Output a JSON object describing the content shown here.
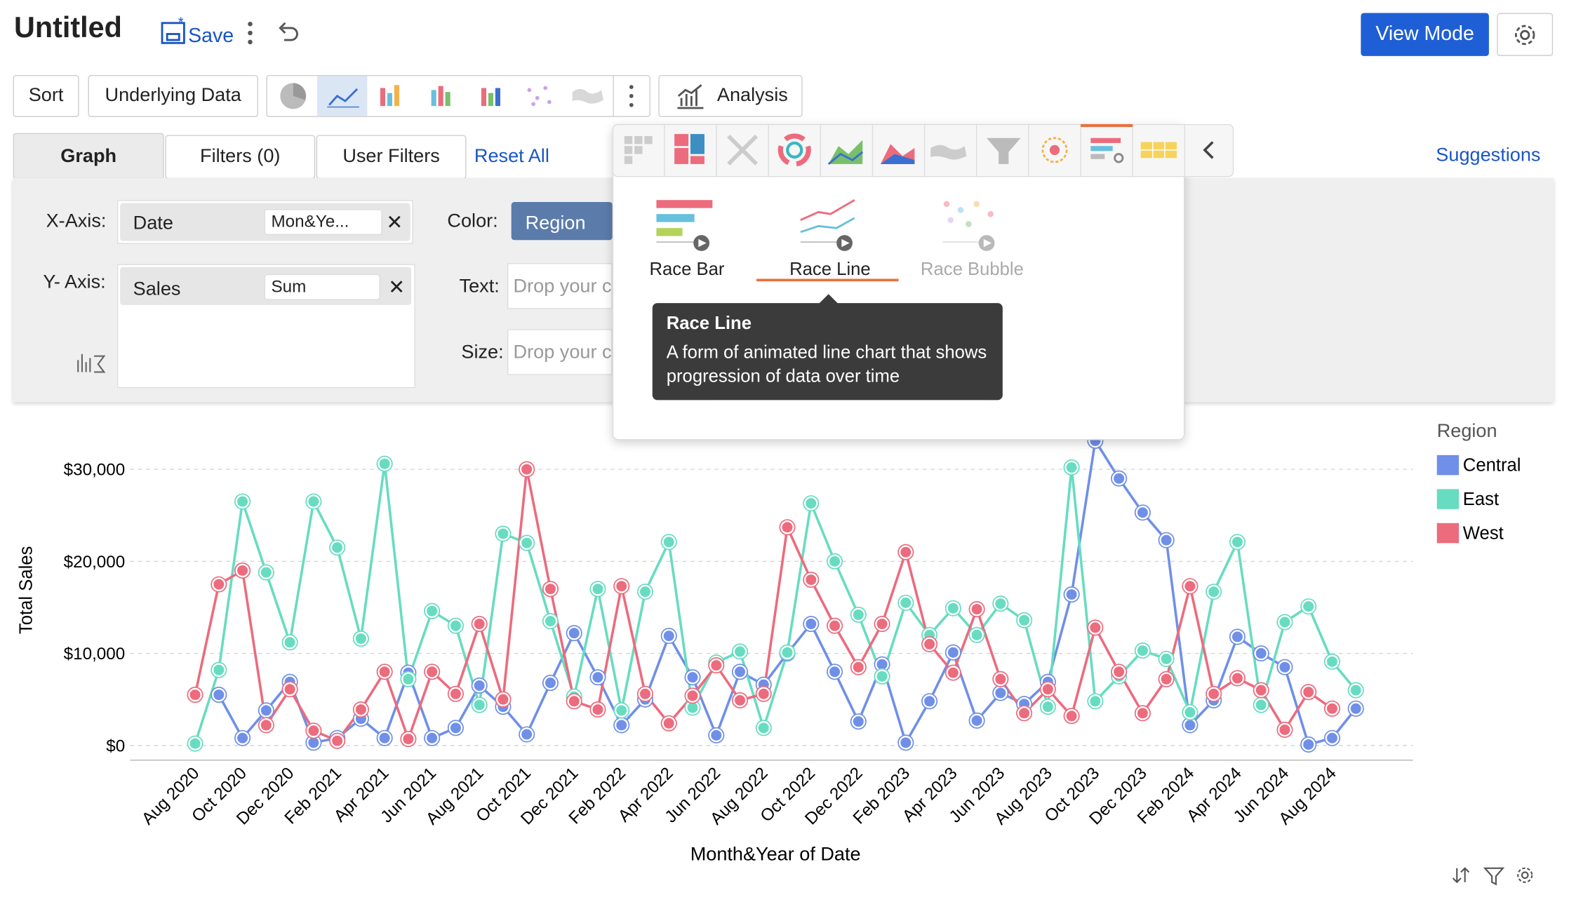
{
  "header": {
    "title": "Untitled",
    "save": "Save",
    "view_mode": "View Mode"
  },
  "toolbar": {
    "sort": "Sort",
    "underlying_data": "Underlying Data",
    "analysis": "Analysis"
  },
  "tabs": {
    "graph": "Graph",
    "filters": "Filters (0)",
    "user_filters": "User Filters",
    "reset_all": "Reset All",
    "suggestions": "Suggestions"
  },
  "shelf": {
    "x_axis_label": "X-Axis:",
    "x_field": "Date",
    "x_func": "Mon&Ye...",
    "y_axis_label": "Y- Axis:",
    "y_field": "Sales",
    "y_func": "Sum",
    "color_label": "Color:",
    "color_field": "Region",
    "text_label": "Text:",
    "text_placeholder": "Drop your c",
    "size_label": "Size:",
    "size_placeholder": "Drop your c"
  },
  "popup": {
    "items": [
      "Race Bar",
      "Race Line",
      "Race Bubble"
    ],
    "tooltip_title": "Race Line",
    "tooltip_body": "A form of animated line chart that shows progression of data over time"
  },
  "chart_data": {
    "type": "line",
    "xlabel": "Month&Year of Date",
    "ylabel": "Total Sales",
    "legend_title": "Region",
    "legend": "right",
    "grid": true,
    "categories": [
      "Aug 2020",
      null,
      "Oct 2020",
      null,
      "Dec 2020",
      null,
      "Feb 2021",
      null,
      "Apr 2021",
      null,
      "Jun 2021",
      null,
      "Aug 2021",
      null,
      "Oct 2021",
      null,
      "Dec 2021",
      null,
      "Feb 2022",
      null,
      "Apr 2022",
      null,
      "Jun 2022",
      null,
      "Aug 2022",
      null,
      "Oct 2022",
      null,
      "Dec 2022",
      null,
      "Feb 2023",
      null,
      "Apr 2023",
      null,
      "Jun 2023",
      null,
      "Aug 2023",
      null,
      "Oct 2023",
      null,
      "Dec 2023",
      null,
      "Feb 2024",
      null,
      "Apr 2024",
      null,
      "Jun 2024",
      null,
      "Aug 2024",
      null
    ],
    "series": [
      {
        "name": "Central",
        "color": "#6f8fe8",
        "values": [
          null,
          5500,
          800,
          3800,
          6900,
          300,
          800,
          2900,
          800,
          7900,
          800,
          1900,
          6500,
          4200,
          1200,
          6800,
          12200,
          7400,
          2200,
          5000,
          11900,
          7400,
          1100,
          8000,
          6600,
          10000,
          13200,
          8000,
          2600,
          8800,
          300,
          4800,
          10100,
          2700,
          5700,
          4500,
          6900,
          16400,
          33100,
          29000,
          25300,
          22300,
          2200,
          4900,
          11800,
          10000,
          8500,
          100,
          800,
          4000
        ]
      },
      {
        "name": "East",
        "color": "#67dcc0",
        "values": [
          200,
          8200,
          26500,
          18800,
          11200,
          26500,
          21500,
          11600,
          30600,
          7200,
          14600,
          13000,
          4400,
          23000,
          22000,
          13500,
          5300,
          17000,
          3800,
          16700,
          22100,
          4100,
          9000,
          10200,
          1900,
          10100,
          26300,
          20000,
          14200,
          7500,
          15500,
          12000,
          14900,
          12000,
          15400,
          13600,
          4200,
          30200,
          4800,
          7500,
          10300,
          9400,
          3600,
          16700,
          22100,
          4400,
          13400,
          15100,
          9100,
          6000
        ]
      },
      {
        "name": "West",
        "color": "#ec6b7d",
        "values": [
          5500,
          17500,
          19000,
          2200,
          6100,
          1600,
          500,
          3900,
          8000,
          700,
          8000,
          5600,
          13200,
          5000,
          30000,
          17000,
          4800,
          3900,
          17300,
          5600,
          2400,
          5400,
          8700,
          4900,
          5600,
          23700,
          18000,
          13000,
          8500,
          13200,
          21000,
          11000,
          7900,
          14800,
          7200,
          3500,
          6100,
          3200,
          12800,
          8000,
          3500,
          7200,
          17300,
          5600,
          7300,
          6000,
          1700,
          5800,
          4000,
          null
        ]
      }
    ],
    "ylim": [
      -1600,
      33500
    ],
    "yticks": [
      {
        "value": 0,
        "label": "$0"
      },
      {
        "value": 10000,
        "label": "$10,000"
      },
      {
        "value": 20000,
        "label": "$20,000"
      },
      {
        "value": 30000,
        "label": "$30,000"
      }
    ]
  }
}
